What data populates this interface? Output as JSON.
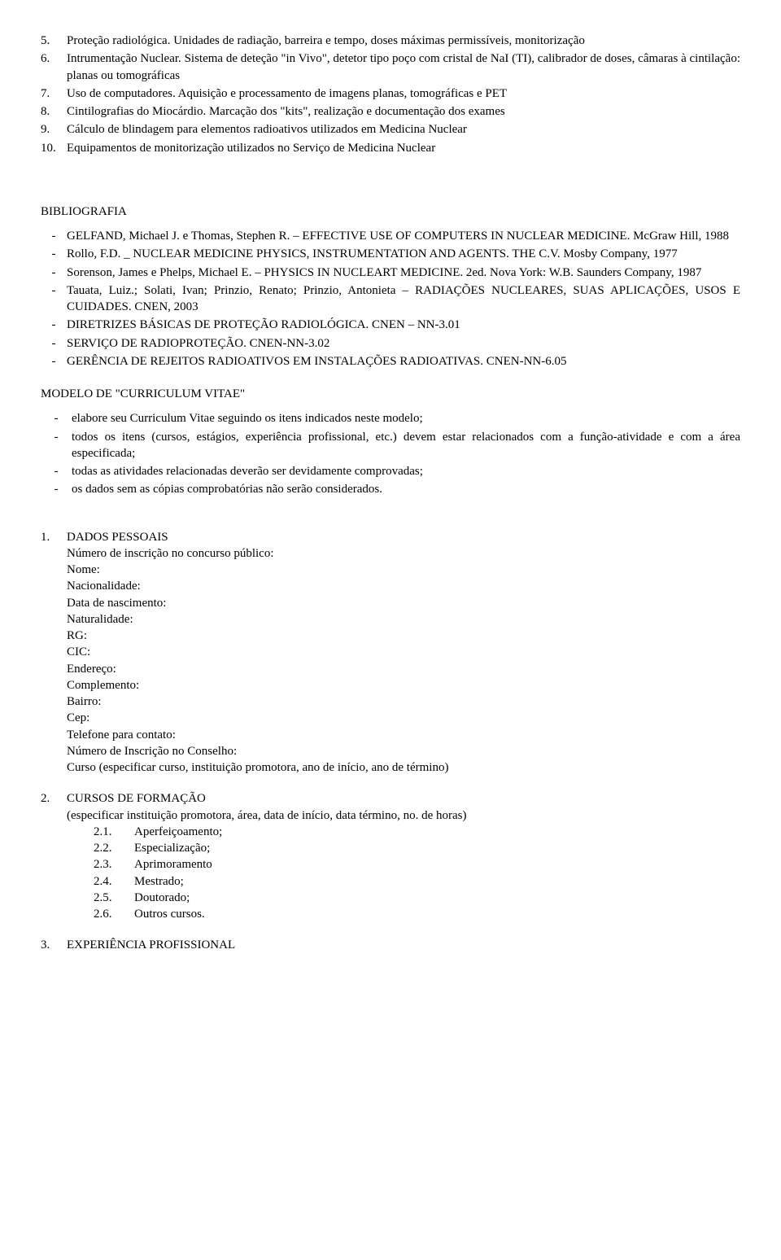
{
  "topics": [
    {
      "n": "5.",
      "t": "Proteção radiológica. Unidades de radiação, barreira e tempo, doses máximas permissíveis, monitorização"
    },
    {
      "n": "6.",
      "t": "Intrumentação Nuclear. Sistema de deteção \"in Vivo\", detetor tipo poço com cristal de NaI (TI), calibrador de doses, câmaras à cintilação: planas ou tomográficas"
    },
    {
      "n": "7.",
      "t": "Uso de computadores. Aquisição e processamento de imagens planas, tomográficas e PET"
    },
    {
      "n": "8.",
      "t": "Cintilografias do Miocárdio. Marcação dos \"kits\", realização e documentação dos exames"
    },
    {
      "n": "9.",
      "t": "Cálculo de blindagem para elementos radioativos utilizados em Medicina Nuclear"
    },
    {
      "n": "10.",
      "t": "Equipamentos de monitorização utilizados no Serviço de Medicina Nuclear"
    }
  ],
  "biblio_title": "BIBLIOGRAFIA",
  "biblio": [
    "GELFAND, Michael J. e Thomas, Stephen R. – EFFECTIVE USE OF COMPUTERS IN NUCLEAR MEDICINE. McGraw Hill, 1988",
    "Rollo, F.D. _ NUCLEAR MEDICINE PHYSICS, INSTRUMENTATION AND AGENTS. THE C.V. Mosby Company, 1977",
    "Sorenson, James e Phelps, Michael E. – PHYSICS IN NUCLEART MEDICINE. 2ed. Nova York: W.B. Saunders Company, 1987",
    "Tauata, Luiz.; Solati, Ivan; Prinzio, Renato; Prinzio, Antonieta – RADIAÇÕES NUCLEARES, SUAS APLICAÇÕES, USOS E CUIDADES. CNEN, 2003",
    "DIRETRIZES BÁSICAS DE PROTEÇÃO RADIOLÓGICA. CNEN – NN-3.01",
    "SERVIÇO DE RADIOPROTEÇÃO. CNEN-NN-3.02",
    "GERÊNCIA DE REJEITOS RADIOATIVOS EM INSTALAÇÕES RADIOATIVAS.   CNEN-NN-6.05"
  ],
  "cv_title": "MODELO DE \"CURRICULUM VITAE\"",
  "cv_notes": [
    "elabore seu Curriculum Vitae seguindo os itens indicados neste modelo;",
    "todos os itens (cursos, estágios, experiência profissional, etc.)  devem estar relacionados com a função-atividade e com a área especificada;",
    "todas as atividades relacionadas deverão ser devidamente comprovadas;",
    "os dados sem as cópias comprobatórias não serão considerados."
  ],
  "sec1": {
    "num": "1.",
    "title": "DADOS PESSOAIS",
    "lines": [
      "Número de inscrição no concurso público:",
      "Nome:",
      "Nacionalidade:",
      "Data de nascimento:",
      "Naturalidade:",
      "RG:",
      "CIC:",
      "Endereço:",
      "Complemento:",
      "Bairro:",
      "Cep:",
      "Telefone para contato:",
      "Número de Inscrição no Conselho:",
      "Curso  (especificar curso, instituição promotora, ano de início, ano de término)"
    ]
  },
  "sec2": {
    "num": "2.",
    "title": "CURSOS DE FORMAÇÃO",
    "sub": "(especificar instituição promotora, área, data de início, data término, no. de horas)",
    "items": [
      {
        "n": "2.1.",
        "t": "Aperfeiçoamento;"
      },
      {
        "n": "2.2.",
        "t": "Especialização;"
      },
      {
        "n": "2.3.",
        "t": "Aprimoramento"
      },
      {
        "n": "2.4.",
        "t": "Mestrado;"
      },
      {
        "n": "2.5.",
        "t": "Doutorado;"
      },
      {
        "n": "2.6.",
        "t": "Outros cursos."
      }
    ]
  },
  "sec3": {
    "num": "3.",
    "title": "EXPERIÊNCIA PROFISSIONAL"
  }
}
